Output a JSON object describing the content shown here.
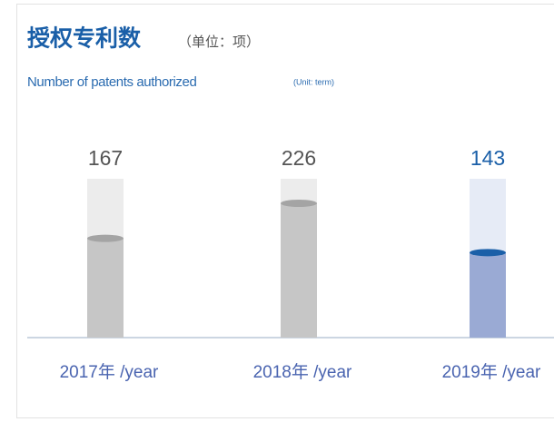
{
  "chart_data": {
    "type": "bar",
    "title": "授权专利数",
    "subtitle": "（单位：项）",
    "title_en": "Number of patents authorized",
    "subtitle_en": "(Unit: term)",
    "categories": [
      "2017年 /year",
      "2018年 /year",
      "2019年 /year"
    ],
    "values": [
      167,
      226,
      143
    ],
    "colors": [
      "#c6c6c6",
      "#c6c6c6",
      "#9aaad4"
    ],
    "track_colors": [
      "#ececec",
      "#ececec",
      "#e6ebf6"
    ],
    "cap_colors": [
      "#a4a4a4",
      "#a4a4a4",
      "#1a5fa8"
    ],
    "label_colors": [
      "#555555",
      "#555555",
      "#1a5fa8"
    ]
  }
}
